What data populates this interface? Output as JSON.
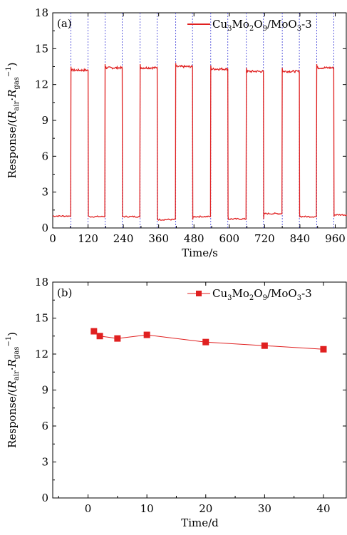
{
  "colors": {
    "series": "#e02020",
    "guide": "#3b3bd6",
    "axis": "#000000"
  },
  "chart_data": [
    {
      "type": "line",
      "panel_label": "(a)",
      "xlabel": "Time/s",
      "ylabel": "Response/(R_air·R_gas^−1)",
      "ylabel_parts": [
        "Response/(",
        "R",
        "air",
        "·",
        "R",
        "gas",
        "−1",
        ")"
      ],
      "xlim": [
        0,
        1000
      ],
      "ylim": [
        0,
        18
      ],
      "xticks": [
        0,
        120,
        240,
        360,
        480,
        600,
        720,
        840,
        960
      ],
      "yticks": [
        0,
        3,
        6,
        9,
        12,
        15,
        18
      ],
      "grid": false,
      "legend_position": "top-right",
      "guide_lines_x": [
        62,
        120,
        178,
        236,
        297,
        355,
        418,
        475,
        537,
        595,
        658,
        716,
        780,
        838,
        897,
        955
      ],
      "series": [
        {
          "name": "Cu3Mo2O9/MoO3-3",
          "name_parts": [
            "Cu",
            "3",
            "Mo",
            "2",
            "O",
            "9",
            "/MoO",
            "3",
            "-3"
          ],
          "cycles": [
            {
              "on": 62,
              "off": 120,
              "high": 13.2,
              "base": 1.0
            },
            {
              "on": 178,
              "off": 236,
              "high": 13.4,
              "base": 0.95
            },
            {
              "on": 297,
              "off": 355,
              "high": 13.4,
              "base": 0.95
            },
            {
              "on": 418,
              "off": 475,
              "high": 13.5,
              "base": 0.7
            },
            {
              "on": 537,
              "off": 595,
              "high": 13.3,
              "base": 0.95
            },
            {
              "on": 658,
              "off": 716,
              "high": 13.1,
              "base": 0.75
            },
            {
              "on": 780,
              "off": 838,
              "high": 13.1,
              "base": 1.2
            },
            {
              "on": 897,
              "off": 955,
              "high": 13.4,
              "base": 0.95
            }
          ],
          "end_base": 1.1
        }
      ]
    },
    {
      "type": "line",
      "panel_label": "(b)",
      "xlabel": "Time/d",
      "ylabel": "Response/(R_air·R_gas^−1)",
      "ylabel_parts": [
        "Response/(",
        "R",
        "air",
        "·",
        "R",
        "gas",
        "−1",
        ")"
      ],
      "xlim": [
        -6,
        44
      ],
      "ylim": [
        0,
        18
      ],
      "xticks": [
        0,
        10,
        20,
        30,
        40
      ],
      "yticks": [
        0,
        3,
        6,
        9,
        12,
        15,
        18
      ],
      "grid": false,
      "legend_position": "top-right",
      "series": [
        {
          "name": "Cu3Mo2O9/MoO3-3",
          "name_parts": [
            "Cu",
            "3",
            "Mo",
            "2",
            "O",
            "9",
            "/MoO",
            "3",
            "-3"
          ],
          "marker": "square",
          "x": [
            1,
            2,
            5,
            10,
            20,
            30,
            40
          ],
          "y": [
            13.9,
            13.5,
            13.3,
            13.6,
            13.0,
            12.7,
            12.4
          ]
        }
      ]
    }
  ]
}
